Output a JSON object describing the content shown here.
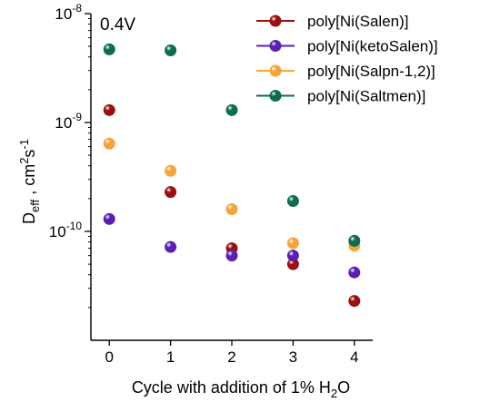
{
  "chart_data": {
    "type": "scatter",
    "annotation": "0.4V",
    "xlabel": {
      "prefix": "Cycle with addition of 1% H",
      "sub": "2",
      "suffix": "O"
    },
    "ylabel": {
      "base": "D",
      "sub": "eff",
      "sep": " , cm",
      "sup1": "2",
      "mid": "s",
      "sup2": "-1"
    },
    "x_ticks": [
      0,
      1,
      2,
      3,
      4
    ],
    "y_log_scale": true,
    "y_ticks": [
      {
        "value": 1e-10,
        "base": "10",
        "exp": "-10"
      },
      {
        "value": 1e-09,
        "base": "10",
        "exp": "-9"
      },
      {
        "value": 1e-08,
        "base": "10",
        "exp": "-8"
      }
    ],
    "xlim": [
      -0.3,
      4.3
    ],
    "ylim": [
      1e-11,
      1e-08
    ],
    "legend_position": "top-right",
    "series": [
      {
        "name": "poly[Ni(Salen)]",
        "color": "#9b0f0f",
        "points": [
          [
            0,
            1.3e-09
          ],
          [
            1,
            2.3e-10
          ],
          [
            2,
            7e-11
          ],
          [
            3,
            5e-11
          ],
          [
            4,
            2.3e-11
          ]
        ]
      },
      {
        "name": "poly[Ni(ketoSalen)]",
        "color": "#5a1fb0",
        "points": [
          [
            0,
            1.3e-10
          ],
          [
            1,
            7.2e-11
          ],
          [
            2,
            6e-11
          ],
          [
            3,
            6e-11
          ],
          [
            4,
            4.2e-11
          ]
        ]
      },
      {
        "name": "poly[Ni(Salpn-1,2)]",
        "color": "#f7a33a",
        "points": [
          [
            0,
            6.4e-10
          ],
          [
            1,
            3.6e-10
          ],
          [
            2,
            1.6e-10
          ],
          [
            3,
            7.8e-11
          ],
          [
            4,
            7.4e-11
          ]
        ]
      },
      {
        "name": "poly[Ni(Saltmen)]",
        "color": "#0f6b4e",
        "points": [
          [
            0,
            4.7e-09
          ],
          [
            1,
            4.6e-09
          ],
          [
            2,
            1.3e-09
          ],
          [
            3,
            1.9e-10
          ],
          [
            4,
            8.2e-11
          ]
        ]
      }
    ]
  }
}
